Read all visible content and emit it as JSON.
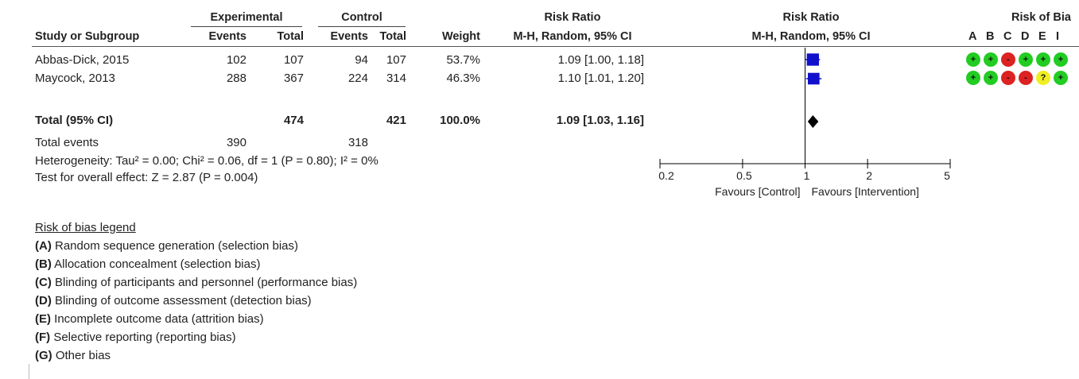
{
  "columns": {
    "experimental": "Experimental",
    "control": "Control",
    "rr_left": "Risk Ratio",
    "rr_right": "Risk Ratio",
    "rob": "Risk of Bia",
    "study": "Study or Subgroup",
    "events": "Events",
    "total": "Total",
    "weight": "Weight",
    "method_left": "M-H, Random, 95% CI",
    "method_right": "M-H, Random, 95% CI",
    "rob_letters": [
      "A",
      "B",
      "C",
      "D",
      "E",
      "I"
    ]
  },
  "studies": [
    {
      "name": "Abbas-Dick, 2015",
      "exp_events": "102",
      "exp_total": "107",
      "ctl_events": "94",
      "ctl_total": "107",
      "weight": "53.7%",
      "ci": "1.09 [1.00, 1.18]"
    },
    {
      "name": "Maycock, 2013",
      "exp_events": "288",
      "exp_total": "367",
      "ctl_events": "224",
      "ctl_total": "314",
      "weight": "46.3%",
      "ci": "1.10 [1.01, 1.20]"
    }
  ],
  "total": {
    "label": "Total (95% CI)",
    "exp_total": "474",
    "ctl_total": "421",
    "weight": "100.0%",
    "ci": "1.09 [1.03, 1.16]"
  },
  "total_events": {
    "label": "Total events",
    "exp": "390",
    "ctl": "318"
  },
  "heterogeneity": "Heterogeneity: Tau² = 0.00; Chi² = 0.06, df = 1 (P = 0.80); I² = 0%",
  "overall_effect": "Test for overall effect: Z = 2.87 (P = 0.004)",
  "legend": {
    "title": "Risk of bias legend",
    "items": [
      {
        "key": "(A)",
        "text": " Random sequence generation (selection bias)"
      },
      {
        "key": "(B)",
        "text": " Allocation concealment (selection bias)"
      },
      {
        "key": "(C)",
        "text": " Blinding of participants and personnel (performance bias)"
      },
      {
        "key": "(D)",
        "text": " Blinding of outcome assessment (detection bias)"
      },
      {
        "key": "(E)",
        "text": " Incomplete outcome data (attrition bias)"
      },
      {
        "key": "(F)",
        "text": " Selective reporting (reporting bias)"
      },
      {
        "key": "(G)",
        "text": " Other bias"
      }
    ]
  },
  "risk_of_bias": [
    {
      "study": "Abbas-Dick, 2015",
      "ratings": [
        "+",
        "+",
        "-",
        "+",
        "+",
        "+"
      ]
    },
    {
      "study": "Maycock, 2013",
      "ratings": [
        "+",
        "+",
        "-",
        "-",
        "?",
        "+"
      ]
    }
  ],
  "rob_colors": {
    "+": "#22cc22",
    "-": "#dd2222",
    "?": "#eeee22"
  },
  "chart_data": {
    "type": "forest",
    "scale": "log",
    "xlim": [
      0.2,
      5
    ],
    "ticks": [
      "0.2",
      "0.5",
      "1",
      "2",
      "5"
    ],
    "tick_values": [
      0.2,
      0.5,
      1,
      2,
      5
    ],
    "null_value": 1,
    "xlabel_left": "Favours [Control]",
    "xlabel_right": "Favours [Intervention]",
    "studies": [
      {
        "name": "Abbas-Dick, 2015",
        "rr": 1.09,
        "lower": 1.0,
        "upper": 1.18,
        "weight": 53.7
      },
      {
        "name": "Maycock, 2013",
        "rr": 1.1,
        "lower": 1.01,
        "upper": 1.2,
        "weight": 46.3
      }
    ],
    "pooled": {
      "rr": 1.09,
      "lower": 1.03,
      "upper": 1.16
    },
    "marker_color": "#1111cc",
    "diamond_color": "#000000"
  }
}
